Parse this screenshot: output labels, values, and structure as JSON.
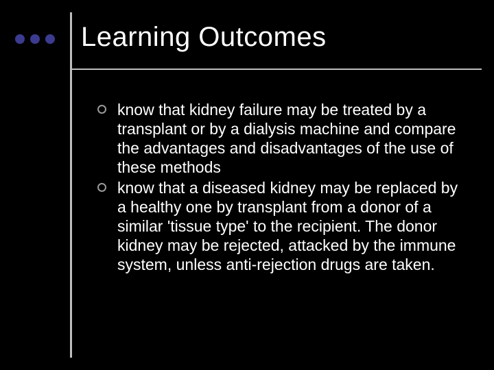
{
  "theme": {
    "background": "#000000",
    "text_color": "#ffffff",
    "dot_color": "#3b3b8f",
    "line_color": "#bfbfbf",
    "bullet_ring_color": "#9a9a9a",
    "font_family": "Comic Sans MS",
    "title_fontsize": 40,
    "body_fontsize": 23
  },
  "title": "Learning Outcomes",
  "bullets": [
    "know that kidney failure may be treated by a transplant or by a dialysis machine and compare the advantages and disadvantages of the use of these methods",
    "know that a diseased kidney may be replaced by a healthy one by transplant from a donor of a similar 'tissue type' to the recipient. The donor kidney may be rejected, attacked by the immune system, unless anti-rejection drugs are taken."
  ]
}
